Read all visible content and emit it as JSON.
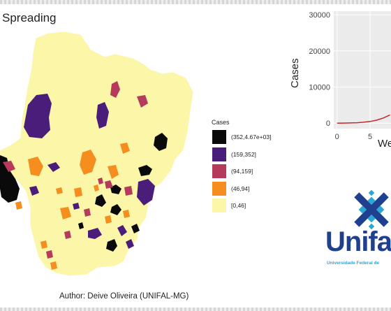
{
  "title": "Spreading",
  "author": "Author: Deive Oliveira (UNIFAL-MG)",
  "legend": {
    "title": "Cases",
    "items": [
      {
        "label": "(352,4.67e+03]",
        "color": "#0a0a0a"
      },
      {
        "label": "(159,352]",
        "color": "#4b1d7a"
      },
      {
        "label": "(94,159]",
        "color": "#b53a5c"
      },
      {
        "label": "(46,94]",
        "color": "#f58d1f"
      },
      {
        "label": "[0,46]",
        "color": "#fbf6a8"
      }
    ]
  },
  "colors": {
    "background": "#ffffff",
    "map_base": "#fbf6a8",
    "line": "#c7262c",
    "logo_blue": "#1f3f8f",
    "logo_cyan": "#2aa7d6"
  },
  "chart_data": {
    "type": "line",
    "ylabel": "Cases",
    "xlabel": "We",
    "y_ticks": [
      "30000",
      "20000",
      "10000",
      "0"
    ],
    "x_ticks": [
      "0",
      "5"
    ],
    "ylim": [
      -1500,
      31000
    ],
    "xlim": [
      -0.5,
      9
    ],
    "grid": true,
    "series": [
      {
        "x": [
          0,
          1,
          2,
          3,
          4,
          5,
          6,
          7,
          8
        ],
        "y": [
          0,
          20,
          60,
          130,
          260,
          480,
          850,
          1450,
          2300
        ]
      }
    ]
  },
  "logo": {
    "word": "Unifal",
    "subtitle": "Universidade Federal de"
  }
}
